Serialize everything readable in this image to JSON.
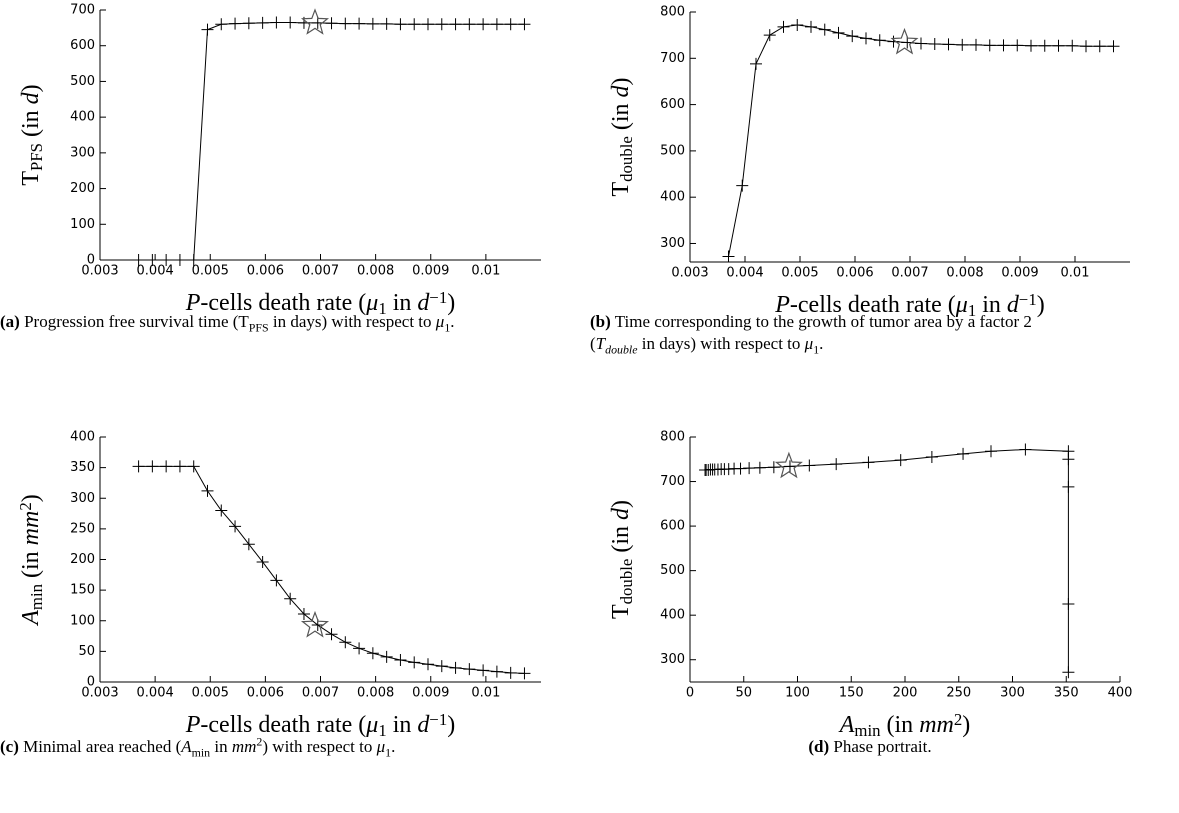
{
  "chart_data": [
    {
      "type": "line",
      "x_label": [
        {
          "text": "P",
          "style": "italic"
        },
        {
          "text": "-cells death rate (",
          "style": "normal"
        },
        {
          "text": "μ",
          "style": "italic"
        },
        {
          "text": "1",
          "style": "sub"
        },
        {
          "text": " in ",
          "style": "normal"
        },
        {
          "text": "d",
          "style": "italic"
        },
        {
          "text": "−1",
          "style": "sup"
        },
        {
          "text": ")",
          "style": "normal"
        }
      ],
      "y_label": [
        {
          "text": "T",
          "style": "normal"
        },
        {
          "text": "PFS",
          "style": "sub"
        },
        {
          "text": " (in ",
          "style": "normal"
        },
        {
          "text": "d",
          "style": "italic"
        },
        {
          "text": ")",
          "style": "normal"
        }
      ],
      "caption": [
        {
          "text": "(a)",
          "style": "bold"
        },
        {
          "text": " Progression free survival time (T",
          "style": "normal"
        },
        {
          "text": "PFS",
          "style": "sub"
        },
        {
          "text": " in days) with respect to ",
          "style": "normal"
        },
        {
          "text": "μ",
          "style": "italic"
        },
        {
          "text": "1",
          "style": "sub"
        },
        {
          "text": ".",
          "style": "normal"
        }
      ],
      "x": [
        0.0037,
        0.00395,
        0.0042,
        0.00445,
        0.0047,
        0.00495,
        0.0052,
        0.00545,
        0.0057,
        0.00595,
        0.0062,
        0.00645,
        0.0067,
        0.00695,
        0.0072,
        0.00745,
        0.0077,
        0.00795,
        0.0082,
        0.00845,
        0.0087,
        0.00895,
        0.0092,
        0.00945,
        0.0097,
        0.00995,
        0.0102,
        0.01045,
        0.0107
      ],
      "series": [
        {
          "color": "#000000",
          "values": [
            0,
            0,
            0,
            0,
            0,
            645,
            660,
            662,
            663,
            664,
            665,
            665,
            664,
            664,
            663,
            662,
            662,
            661,
            661,
            660,
            660,
            660,
            660,
            660,
            660,
            660,
            660,
            660,
            660
          ]
        }
      ],
      "highlight": {
        "x": 0.0069,
        "y": 664
      },
      "xlim": [
        0.003,
        0.011
      ],
      "xticks": [
        0.003,
        0.004,
        0.005,
        0.006,
        0.007,
        0.008,
        0.009,
        0.01
      ],
      "ylim": [
        0,
        700
      ],
      "yticks": [
        0,
        100,
        200,
        300,
        400,
        500,
        600,
        700
      ]
    },
    {
      "type": "line",
      "x_label": [
        {
          "text": "P",
          "style": "italic"
        },
        {
          "text": "-cells death rate (",
          "style": "normal"
        },
        {
          "text": "μ",
          "style": "italic"
        },
        {
          "text": "1",
          "style": "sub"
        },
        {
          "text": " in ",
          "style": "normal"
        },
        {
          "text": "d",
          "style": "italic"
        },
        {
          "text": "−1",
          "style": "sup"
        },
        {
          "text": ")",
          "style": "normal"
        }
      ],
      "y_label": [
        {
          "text": "T",
          "style": "normal"
        },
        {
          "text": "double",
          "style": "sub"
        },
        {
          "text": " (in ",
          "style": "normal"
        },
        {
          "text": "d",
          "style": "italic"
        },
        {
          "text": ")",
          "style": "normal"
        }
      ],
      "caption": [
        {
          "text": "(b)",
          "style": "bold"
        },
        {
          "text": " Time corresponding to the growth of tumor area by a factor 2 (",
          "style": "normal"
        },
        {
          "text": "T",
          "style": "italic"
        },
        {
          "text": "double",
          "style": "sub-italic"
        },
        {
          "text": " in days) with respect to ",
          "style": "normal"
        },
        {
          "text": "μ",
          "style": "italic"
        },
        {
          "text": "1",
          "style": "sub"
        },
        {
          "text": ".",
          "style": "normal"
        }
      ],
      "x": [
        0.0037,
        0.00395,
        0.0042,
        0.00445,
        0.0047,
        0.00495,
        0.0052,
        0.00545,
        0.0057,
        0.00595,
        0.0062,
        0.00645,
        0.0067,
        0.00695,
        0.0072,
        0.00745,
        0.0077,
        0.00795,
        0.0082,
        0.00845,
        0.0087,
        0.00895,
        0.0092,
        0.00945,
        0.0097,
        0.00995,
        0.0102,
        0.01045,
        0.0107
      ],
      "series": [
        {
          "color": "#000000",
          "values": [
            272,
            425,
            688,
            750,
            768,
            772,
            768,
            762,
            755,
            748,
            743,
            739,
            736,
            734,
            732,
            731,
            730,
            729,
            729,
            728,
            728,
            728,
            727,
            727,
            727,
            727,
            726,
            726,
            726
          ]
        }
      ],
      "highlight": {
        "x": 0.0069,
        "y": 734
      },
      "xlim": [
        0.003,
        0.011
      ],
      "xticks": [
        0.003,
        0.004,
        0.005,
        0.006,
        0.007,
        0.008,
        0.009,
        0.01
      ],
      "ylim": [
        260,
        800
      ],
      "yticks": [
        300,
        400,
        500,
        600,
        700,
        800
      ]
    },
    {
      "type": "line",
      "x_label": [
        {
          "text": "P",
          "style": "italic"
        },
        {
          "text": "-cells death rate (",
          "style": "normal"
        },
        {
          "text": "μ",
          "style": "italic"
        },
        {
          "text": "1",
          "style": "sub"
        },
        {
          "text": " in ",
          "style": "normal"
        },
        {
          "text": "d",
          "style": "italic"
        },
        {
          "text": "−1",
          "style": "sup"
        },
        {
          "text": ")",
          "style": "normal"
        }
      ],
      "y_label": [
        {
          "text": "A",
          "style": "italic"
        },
        {
          "text": "min",
          "style": "sub"
        },
        {
          "text": " (in ",
          "style": "normal"
        },
        {
          "text": "mm",
          "style": "italic"
        },
        {
          "text": "2",
          "style": "sup"
        },
        {
          "text": ")",
          "style": "normal"
        }
      ],
      "caption": [
        {
          "text": "(c)",
          "style": "bold"
        },
        {
          "text": " Minimal area reached (",
          "style": "normal"
        },
        {
          "text": "A",
          "style": "italic"
        },
        {
          "text": "min",
          "style": "sub"
        },
        {
          "text": " in ",
          "style": "normal"
        },
        {
          "text": "mm",
          "style": "italic"
        },
        {
          "text": "2",
          "style": "sup"
        },
        {
          "text": ") with respect to ",
          "style": "normal"
        },
        {
          "text": "μ",
          "style": "italic"
        },
        {
          "text": "1",
          "style": "sub"
        },
        {
          "text": ".",
          "style": "normal"
        }
      ],
      "x": [
        0.0037,
        0.00395,
        0.0042,
        0.00445,
        0.0047,
        0.00495,
        0.0052,
        0.00545,
        0.0057,
        0.00595,
        0.0062,
        0.00645,
        0.0067,
        0.00695,
        0.0072,
        0.00745,
        0.0077,
        0.00795,
        0.0082,
        0.00845,
        0.0087,
        0.00895,
        0.0092,
        0.00945,
        0.0097,
        0.00995,
        0.0102,
        0.01045,
        0.0107
      ],
      "series": [
        {
          "color": "#000000",
          "values": [
            352,
            352,
            352,
            352,
            352,
            312,
            280,
            254,
            225,
            196,
            166,
            136,
            111,
            93,
            78,
            65,
            55,
            47,
            41,
            36,
            32,
            29,
            26,
            23,
            21,
            19,
            17,
            15,
            14
          ]
        }
      ],
      "highlight": {
        "x": 0.0069,
        "y": 92
      },
      "xlim": [
        0.003,
        0.011
      ],
      "xticks": [
        0.003,
        0.004,
        0.005,
        0.006,
        0.007,
        0.008,
        0.009,
        0.01
      ],
      "ylim": [
        0,
        400
      ],
      "yticks": [
        0,
        50,
        100,
        150,
        200,
        250,
        300,
        350,
        400
      ]
    },
    {
      "type": "line",
      "x_label": [
        {
          "text": "A",
          "style": "italic"
        },
        {
          "text": "min",
          "style": "sub"
        },
        {
          "text": " (in ",
          "style": "normal"
        },
        {
          "text": "mm",
          "style": "italic"
        },
        {
          "text": "2",
          "style": "sup"
        },
        {
          "text": ")",
          "style": "normal"
        }
      ],
      "y_label": [
        {
          "text": "T",
          "style": "normal"
        },
        {
          "text": "double",
          "style": "sub"
        },
        {
          "text": " (in ",
          "style": "normal"
        },
        {
          "text": "d",
          "style": "italic"
        },
        {
          "text": ")",
          "style": "normal"
        }
      ],
      "caption": [
        {
          "text": "(d)",
          "style": "bold"
        },
        {
          "text": " Phase portrait.",
          "style": "normal"
        }
      ],
      "x": [
        352,
        352,
        352,
        352,
        352,
        312,
        280,
        254,
        225,
        196,
        166,
        136,
        111,
        93,
        78,
        65,
        55,
        47,
        41,
        36,
        32,
        29,
        26,
        23,
        21,
        19,
        17,
        15,
        14
      ],
      "series": [
        {
          "color": "#000000",
          "values": [
            272,
            425,
            688,
            750,
            768,
            772,
            768,
            762,
            755,
            748,
            743,
            739,
            736,
            734,
            732,
            731,
            730,
            729,
            729,
            728,
            728,
            728,
            727,
            727,
            727,
            727,
            726,
            726,
            726
          ]
        }
      ],
      "highlight": {
        "x": 92,
        "y": 734
      },
      "xlim": [
        0,
        400
      ],
      "xticks": [
        0,
        50,
        100,
        150,
        200,
        250,
        300,
        350,
        400
      ],
      "ylim": [
        250,
        800
      ],
      "yticks": [
        300,
        400,
        500,
        600,
        700,
        800
      ]
    }
  ]
}
